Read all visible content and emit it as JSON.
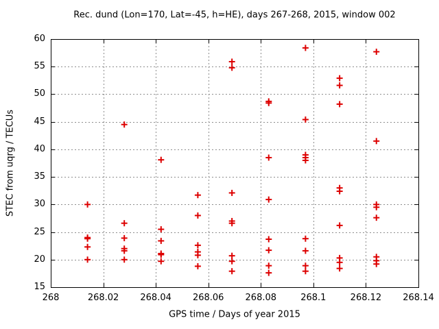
{
  "chart_data": {
    "type": "scatter",
    "title": "Rec. dund (Lon=170, Lat=-45, h=HE), days 267-268, 2015, window 002",
    "xlabel": "GPS time / Days of year 2015",
    "ylabel": "STEC from uqrg / TECUs",
    "xlim": [
      268,
      268.14
    ],
    "ylim": [
      15,
      60
    ],
    "grid": true,
    "legend": "none",
    "marker": "plus",
    "marker_color": "#dd0000",
    "grid_color": "#8c8c8c",
    "border_color": "#000000",
    "xticks": [
      268,
      268.02,
      268.04,
      268.06,
      268.08,
      268.1,
      268.12,
      268.14
    ],
    "xtick_labels": [
      "268",
      "268.02",
      "268.04",
      "268.06",
      "268.08",
      "268.1",
      "268.12",
      "268.14"
    ],
    "yticks": [
      15,
      20,
      25,
      30,
      35,
      40,
      45,
      50,
      55,
      60
    ],
    "ytick_labels": [
      "15",
      "20",
      "25",
      "30",
      "35",
      "40",
      "45",
      "50",
      "55",
      "60"
    ],
    "series": [
      {
        "name": "STEC",
        "points": [
          [
            268.014,
            30.0
          ],
          [
            268.014,
            24.0
          ],
          [
            268.014,
            23.8
          ],
          [
            268.014,
            22.3
          ],
          [
            268.014,
            20.0
          ],
          [
            268.028,
            44.5
          ],
          [
            268.028,
            26.6
          ],
          [
            268.028,
            23.9
          ],
          [
            268.028,
            22.0
          ],
          [
            268.028,
            21.6
          ],
          [
            268.028,
            20.0
          ],
          [
            268.042,
            38.1
          ],
          [
            268.042,
            25.5
          ],
          [
            268.042,
            23.4
          ],
          [
            268.042,
            21.1
          ],
          [
            268.042,
            20.9
          ],
          [
            268.042,
            19.7
          ],
          [
            268.056,
            31.7
          ],
          [
            268.056,
            28.0
          ],
          [
            268.056,
            22.6
          ],
          [
            268.056,
            21.4
          ],
          [
            268.056,
            20.8
          ],
          [
            268.056,
            18.8
          ],
          [
            268.069,
            55.9
          ],
          [
            268.069,
            54.8
          ],
          [
            268.069,
            32.1
          ],
          [
            268.069,
            27.0
          ],
          [
            268.069,
            26.6
          ],
          [
            268.069,
            20.7
          ],
          [
            268.069,
            19.7
          ],
          [
            268.069,
            17.9
          ],
          [
            268.083,
            48.7
          ],
          [
            268.083,
            48.4
          ],
          [
            268.083,
            38.5
          ],
          [
            268.083,
            30.9
          ],
          [
            268.083,
            23.7
          ],
          [
            268.083,
            21.7
          ],
          [
            268.083,
            18.9
          ],
          [
            268.083,
            17.6
          ],
          [
            268.097,
            58.4
          ],
          [
            268.097,
            45.4
          ],
          [
            268.097,
            39.0
          ],
          [
            268.097,
            38.5
          ],
          [
            268.097,
            38.0
          ],
          [
            268.097,
            23.8
          ],
          [
            268.097,
            21.6
          ],
          [
            268.097,
            18.9
          ],
          [
            268.097,
            17.9
          ],
          [
            268.11,
            52.9
          ],
          [
            268.11,
            51.6
          ],
          [
            268.11,
            48.2
          ],
          [
            268.11,
            33.0
          ],
          [
            268.11,
            32.4
          ],
          [
            268.11,
            26.2
          ],
          [
            268.11,
            20.3
          ],
          [
            268.11,
            19.5
          ],
          [
            268.11,
            18.4
          ],
          [
            268.124,
            57.7
          ],
          [
            268.124,
            41.5
          ],
          [
            268.124,
            30.0
          ],
          [
            268.124,
            29.5
          ],
          [
            268.124,
            27.6
          ],
          [
            268.124,
            20.5
          ],
          [
            268.124,
            19.8
          ],
          [
            268.124,
            19.2
          ]
        ]
      }
    ]
  }
}
